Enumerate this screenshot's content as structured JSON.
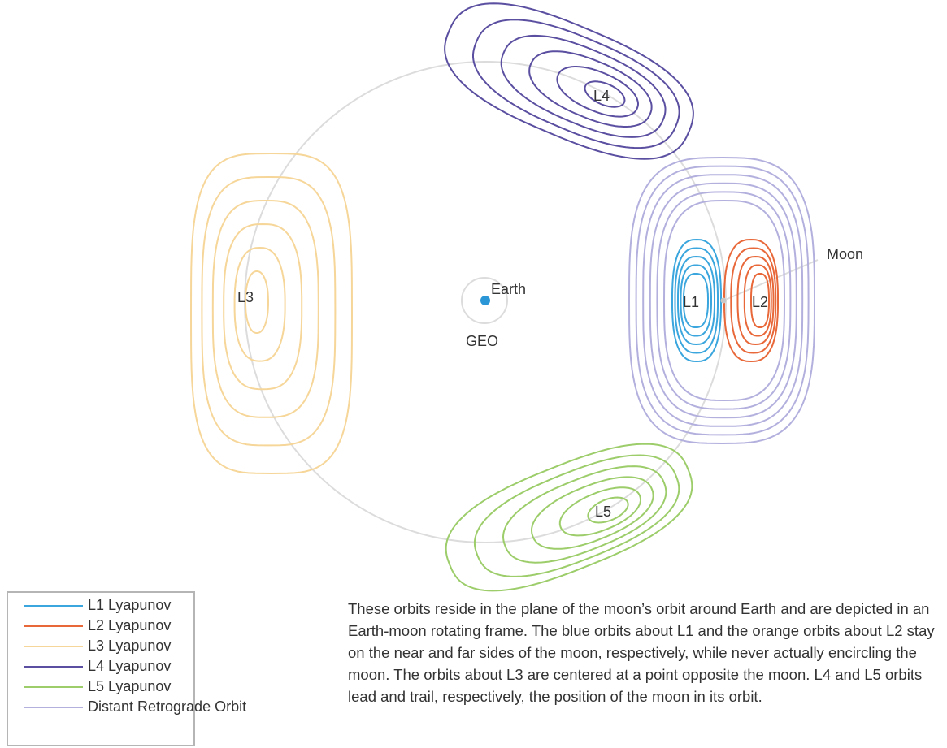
{
  "labels": {
    "l1": "L1",
    "l2": "L2",
    "l3": "L3",
    "l4": "L4",
    "l5": "L5",
    "earth": "Earth",
    "geo": "GEO",
    "moon": "Moon"
  },
  "colors": {
    "l1": "#3aa6dd",
    "l2": "#e8683a",
    "l3": "#f6d699",
    "l4": "#5a4fa0",
    "l5": "#9ccd6a",
    "dro": "#b3b0de",
    "moon_orbit": "#dcdcdc",
    "earth": "#2b96d6"
  },
  "legend": [
    {
      "label": "L1 Lyapunov",
      "color": "#3aa6dd"
    },
    {
      "label": "L2 Lyapunov",
      "color": "#e8683a"
    },
    {
      "label": "L3 Lyapunov",
      "color": "#f6d699"
    },
    {
      "label": "L4 Lyapunov",
      "color": "#5a4fa0"
    },
    {
      "label": "L5 Lyapunov",
      "color": "#9ccd6a"
    },
    {
      "label": "Distant Retrograde Orbit",
      "color": "#b3b0de"
    }
  ],
  "caption": "These orbits reside in the plane of the moon’s orbit around Earth and are depicted in an Earth-moon rotating frame. The blue orbits about L1 and the orange orbits about L2 stay on the near and far sides of the moon, respectively, while never actually encircling the moon. The orbits about L3 are centered at a point opposite the moon. L4 and L5 orbits lead and trail, respectively, the position of the moon in its orbit."
}
